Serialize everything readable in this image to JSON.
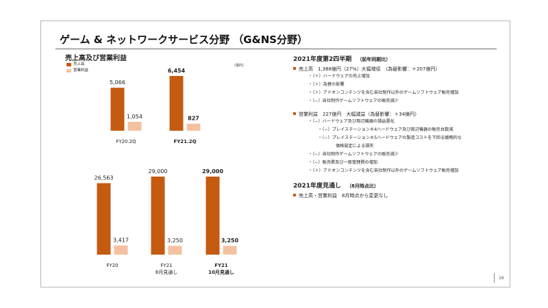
{
  "title": "ゲーム & ネットワークサービス分野 （G&NS分野）",
  "chart_title": "売上高及び営業利益",
  "unit": "（億円）",
  "colors": {
    "sales": "#c55a11",
    "profit": "#f4c1a0",
    "accent": "#c55a11"
  },
  "chart_data": [
    {
      "type": "bar",
      "categories": [
        "FY20.2Q",
        "FY21.2Q"
      ],
      "series": [
        {
          "name": "売上高",
          "values": [
            5066,
            6454
          ]
        },
        {
          "name": "営業利益",
          "values": [
            1054,
            827
          ]
        }
      ],
      "value_labels": {
        "sales": [
          "5,066",
          "6,454"
        ],
        "profit": [
          "1,054",
          "827"
        ]
      },
      "category_lines": [
        [
          "FY20.2Q"
        ],
        [
          "FY21.2Q"
        ]
      ],
      "bold": [
        false,
        true
      ]
    },
    {
      "type": "bar",
      "categories": [
        "FY20",
        "FY21 8月見通し",
        "FY21 10月見通し"
      ],
      "series": [
        {
          "name": "売上高",
          "values": [
            26563,
            29000,
            29000
          ]
        },
        {
          "name": "営業利益",
          "values": [
            3417,
            3250,
            3250
          ]
        }
      ],
      "value_labels": {
        "sales": [
          "26,563",
          "29,000",
          "29,000"
        ],
        "profit": [
          "3,417",
          "3,250",
          "3,250"
        ]
      },
      "category_lines": [
        [
          "FY20"
        ],
        [
          "FY21",
          "8月見通し"
        ],
        [
          "FY21",
          "10月見通し"
        ]
      ],
      "bold": [
        false,
        false,
        true
      ]
    }
  ],
  "right": {
    "q2_title": "2021年度第2四半期",
    "q2_sub": "（前年同期比）",
    "sales_bullet": "売上高　1,388億円（27%）大幅増収　（為替影響：＋207億円）",
    "sales_lines": [
      "・（＋）ハードウェアの売上増加",
      "・（＋）為替の影響",
      "・（＋）アドオンコンテンツを含む自社制作以外のゲームソフトウェア販売増加",
      "・（−）自社制作ゲームソフトウェアの販売減少"
    ],
    "profit_bullet": "営業利益　227億円　大幅減益（為替影響：＋34億円）",
    "profit_lines": [
      {
        "text": "・（−）ハードウェア及び周辺機器の損益悪化",
        "indent": 0
      },
      {
        "text": "・（−）プレイステーション®4ハードウェア及び周辺機器の販売台数減",
        "indent": 1
      },
      {
        "text": "・（−）プレイステーション®5ハードウェアの製造コストを下回る戦略的な",
        "indent": 1
      },
      {
        "text": "価格設定による損失",
        "indent": 2
      },
      {
        "text": "・（−）自社制作ゲームソフトウェアの販売減少",
        "indent": 0
      },
      {
        "text": "・（−）販売費及び一般管理費の増加",
        "indent": 0
      },
      {
        "text": "・（＋）アドオンコンテンツを含む自社制作以外のゲームソフトウェア販売増加",
        "indent": 0
      }
    ],
    "outlook_title": "2021年度見通し",
    "outlook_sub": "（8月時点比）",
    "outlook_bullet": "売上高・営業利益　8月時点から変更なし"
  },
  "page_number": "16"
}
